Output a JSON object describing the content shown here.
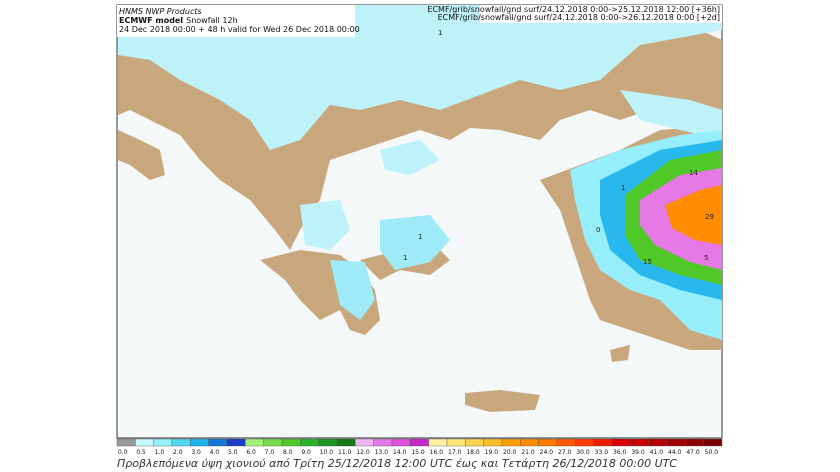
{
  "header": {
    "source": "HNMS NWP Products",
    "model": "ECMWF model",
    "field": "Snowfall 12h",
    "valid": "24 Dec 2018 00:00 + 48 h valid for Wed 26 Dec 2018 00:00",
    "right": [
      "ECMF/grib/snowfall/gnd surf/24.12.2018 0:00->25.12.2018 12:00 [+36h]",
      "ECMF/grib/snowfall/gnd surf/24.12.2018 0:00->26.12.2018 0:00 [+2d]"
    ]
  },
  "map_labels": [
    "1",
    "1",
    "1",
    "1",
    "0",
    "14",
    "29",
    "15",
    "5"
  ],
  "colorbar": {
    "labels": [
      "0.0",
      "0.5",
      "1.0",
      "2.0",
      "3.0",
      "4.0",
      "5.0",
      "6.0",
      "7.0",
      "8.0",
      "9.0",
      "10.0",
      "11.0",
      "12.0",
      "13.0",
      "14.0",
      "15.0",
      "16.0",
      "17.0",
      "18.0",
      "19.0",
      "20.0",
      "21.0",
      "24.0",
      "27.0",
      "30.0",
      "33.0",
      "36.0",
      "39.0",
      "41.0",
      "44.0",
      "47.0",
      "50.0"
    ],
    "colors": [
      "#9a9a9a",
      "#c8f8ff",
      "#96f0ff",
      "#50d8f0",
      "#1eb4f0",
      "#1478dc",
      "#1e3cc8",
      "#a0f078",
      "#78dc50",
      "#50c828",
      "#28b428",
      "#1e9628",
      "#147814",
      "#f0b4f0",
      "#e678e6",
      "#dc50dc",
      "#c828c8",
      "#fff0a0",
      "#ffe678",
      "#ffd250",
      "#ffbe28",
      "#ffa000",
      "#ff8c00",
      "#ff7800",
      "#ff5a00",
      "#ff3c00",
      "#f01e00",
      "#dc0000",
      "#c80000",
      "#b40000",
      "#a00000",
      "#8c0000",
      "#780000"
    ]
  },
  "caption": "Προβλεπόμενα ύψη χιονιού από Τρίτη 25/12/2018 12:00 UTC έως και Τετάρτη 26/12/2018 00:00 UTC"
}
